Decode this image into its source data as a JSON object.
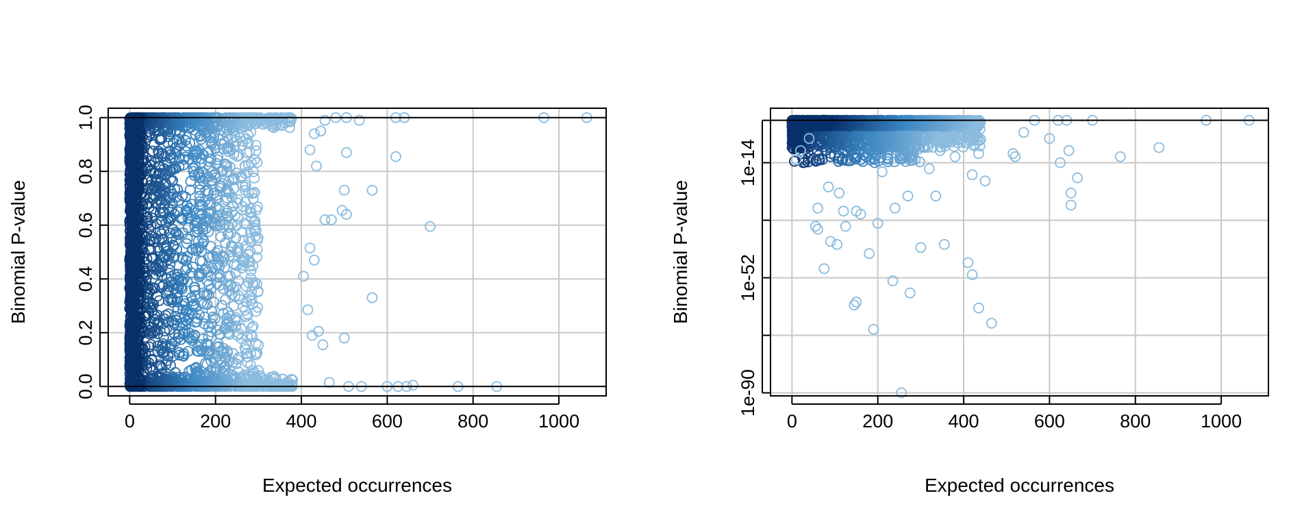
{
  "chart_data": [
    {
      "type": "scatter",
      "title": "",
      "xlabel": "Expected occurrences",
      "ylabel": "Binomial P-value",
      "xlim": [
        -50,
        1110
      ],
      "ylim": [
        -0.035,
        1.035
      ],
      "y_scale": "linear",
      "x_ticks": [
        0,
        200,
        400,
        600,
        800,
        1000
      ],
      "x_tick_labels": [
        "0",
        "200",
        "400",
        "600",
        "800",
        "1000"
      ],
      "y_ticks": [
        0.0,
        0.2,
        0.4,
        0.6,
        0.8,
        1.0
      ],
      "y_tick_labels": [
        "0.0",
        "0.2",
        "0.4",
        "0.6",
        "0.8",
        "1.0"
      ],
      "reference_lines_y": [
        0,
        1
      ],
      "grid": true,
      "density_coloring": "darker blue = higher point density",
      "colors": {
        "dense": "#08306b",
        "mid": "#3a85c1",
        "sparse": "#8bbbde",
        "grid": "#c8c8c8"
      },
      "outlier_points": [
        [
          965,
          1.0
        ],
        [
          1065,
          1.0
        ],
        [
          620,
          1.0
        ],
        [
          640,
          1.0
        ],
        [
          505,
          1.0
        ],
        [
          535,
          0.99
        ],
        [
          480,
          1.0
        ],
        [
          455,
          0.99
        ],
        [
          620,
          0.855
        ],
        [
          505,
          0.87
        ],
        [
          430,
          0.94
        ],
        [
          445,
          0.95
        ],
        [
          420,
          0.88
        ],
        [
          435,
          0.82
        ],
        [
          565,
          0.73
        ],
        [
          500,
          0.73
        ],
        [
          495,
          0.655
        ],
        [
          505,
          0.64
        ],
        [
          470,
          0.62
        ],
        [
          455,
          0.62
        ],
        [
          700,
          0.595
        ],
        [
          420,
          0.515
        ],
        [
          430,
          0.47
        ],
        [
          405,
          0.41
        ],
        [
          565,
          0.33
        ],
        [
          415,
          0.285
        ],
        [
          440,
          0.205
        ],
        [
          425,
          0.19
        ],
        [
          500,
          0.18
        ],
        [
          450,
          0.155
        ],
        [
          465,
          0.015
        ],
        [
          510,
          0.0
        ],
        [
          540,
          0.0
        ],
        [
          600,
          0.0
        ],
        [
          625,
          0.0
        ],
        [
          645,
          0.0
        ],
        [
          660,
          0.005
        ],
        [
          765,
          0.0
        ],
        [
          855,
          0.0
        ]
      ]
    },
    {
      "type": "scatter",
      "title": "",
      "xlabel": "Expected occurrences",
      "ylabel": "Binomial P-value",
      "xlim": [
        -50,
        1110
      ],
      "ylim_log10": [
        -91.0,
        4.0
      ],
      "y_scale": "log",
      "x_ticks": [
        0,
        200,
        400,
        600,
        800,
        1000
      ],
      "x_tick_labels": [
        "0",
        "200",
        "400",
        "600",
        "800",
        "1000"
      ],
      "y_ticks_log10": [
        -90,
        -71,
        -52,
        -33,
        -14,
        0
      ],
      "y_tick_labels": [
        "1e-90",
        "",
        "1e-52",
        "",
        "1e-14",
        ""
      ],
      "reference_lines_log10": [
        0
      ],
      "grid": true,
      "density_coloring": "darker blue = higher point density",
      "colors": {
        "dense": "#08306b",
        "mid": "#3a85c1",
        "sparse": "#8bbbde",
        "grid": "#c8c8c8"
      },
      "outlier_points_log10": [
        [
          965,
          0
        ],
        [
          1065,
          0
        ],
        [
          700,
          0
        ],
        [
          640,
          0
        ],
        [
          620,
          0
        ],
        [
          565,
          0
        ],
        [
          540,
          -4
        ],
        [
          600,
          -6
        ],
        [
          765,
          -12
        ],
        [
          855,
          -9
        ],
        [
          625,
          -14
        ],
        [
          645,
          -10
        ],
        [
          665,
          -19
        ],
        [
          650,
          -24
        ],
        [
          650,
          -28
        ],
        [
          515,
          -11
        ],
        [
          520,
          -12
        ],
        [
          450,
          -20
        ],
        [
          420,
          -18
        ],
        [
          435,
          -11
        ],
        [
          380,
          -12
        ],
        [
          320,
          -16
        ],
        [
          335,
          -25
        ],
        [
          270,
          -25
        ],
        [
          240,
          -29
        ],
        [
          200,
          -34
        ],
        [
          180,
          -44
        ],
        [
          300,
          -42
        ],
        [
          355,
          -41
        ],
        [
          410,
          -47
        ],
        [
          420,
          -51
        ],
        [
          235,
          -53
        ],
        [
          275,
          -57
        ],
        [
          120,
          -30
        ],
        [
          125,
          -35
        ],
        [
          60,
          -29
        ],
        [
          55,
          -35
        ],
        [
          60,
          -36
        ],
        [
          90,
          -40
        ],
        [
          105,
          -41
        ],
        [
          75,
          -49
        ],
        [
          145,
          -61
        ],
        [
          150,
          -60
        ],
        [
          190,
          -69
        ],
        [
          435,
          -62
        ],
        [
          465,
          -67
        ],
        [
          255,
          -90
        ],
        [
          10,
          -13
        ],
        [
          20,
          -10
        ],
        [
          40,
          -6
        ],
        [
          85,
          -22
        ],
        [
          110,
          -24
        ],
        [
          150,
          -30
        ],
        [
          160,
          -31
        ],
        [
          210,
          -17
        ],
        [
          345,
          -10
        ]
      ]
    }
  ]
}
